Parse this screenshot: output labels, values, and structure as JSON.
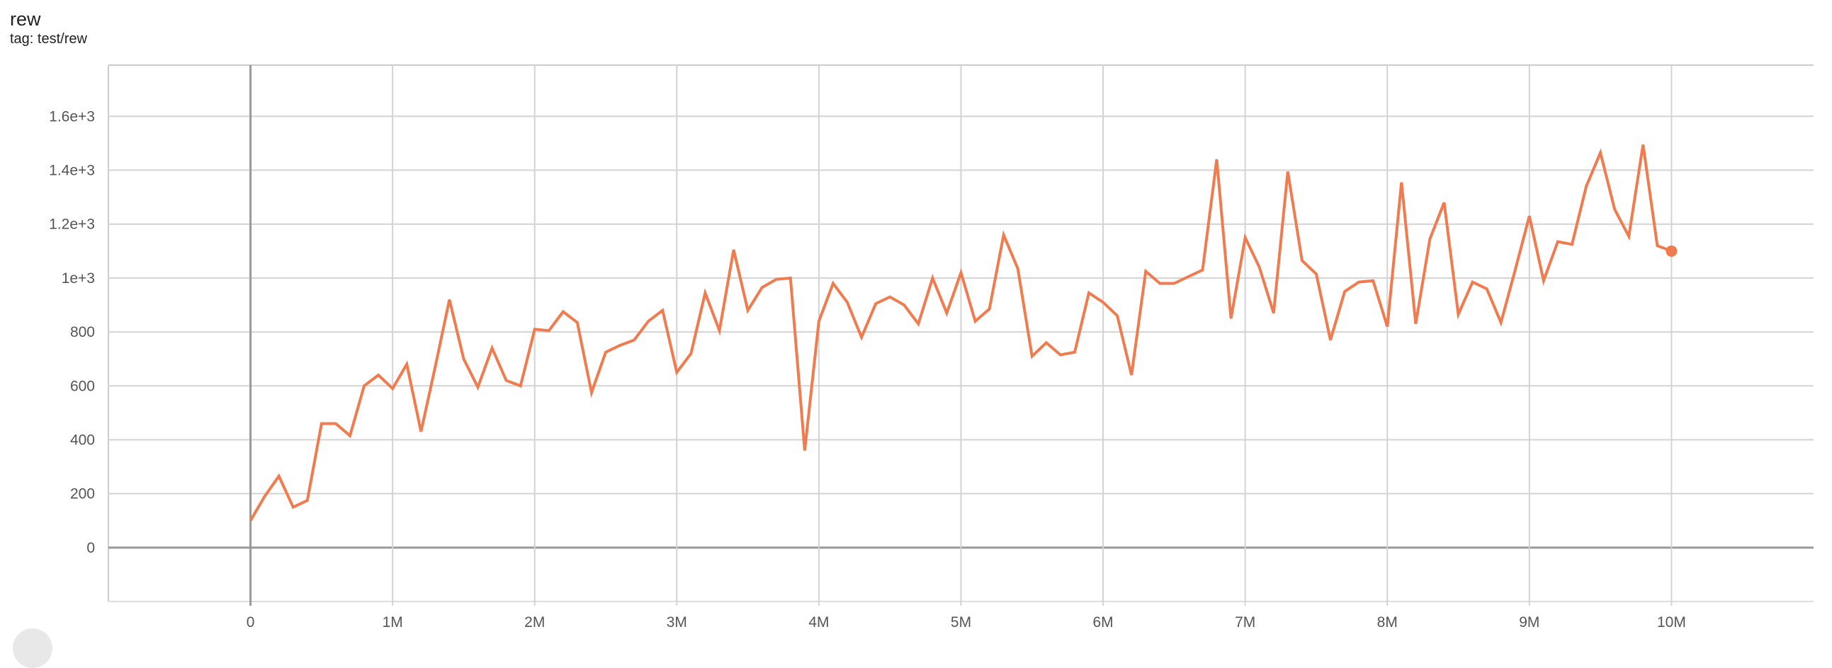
{
  "header": {
    "title": "rew",
    "subtitle": "tag: test/rew"
  },
  "chart_data": {
    "type": "line",
    "title": "rew",
    "subtitle": "tag: test/rew",
    "xlabel": "",
    "ylabel": "",
    "xlim": [
      -1000000,
      11000000
    ],
    "ylim": [
      -200,
      1790
    ],
    "grid": true,
    "x_ticks": [
      {
        "v": 0,
        "label": "0"
      },
      {
        "v": 1000000,
        "label": "1M"
      },
      {
        "v": 2000000,
        "label": "2M"
      },
      {
        "v": 3000000,
        "label": "3M"
      },
      {
        "v": 4000000,
        "label": "4M"
      },
      {
        "v": 5000000,
        "label": "5M"
      },
      {
        "v": 6000000,
        "label": "6M"
      },
      {
        "v": 7000000,
        "label": "7M"
      },
      {
        "v": 8000000,
        "label": "8M"
      },
      {
        "v": 9000000,
        "label": "9M"
      },
      {
        "v": 10000000,
        "label": "10M"
      }
    ],
    "y_ticks": [
      {
        "v": 0,
        "label": "0"
      },
      {
        "v": 200,
        "label": "200"
      },
      {
        "v": 400,
        "label": "400"
      },
      {
        "v": 600,
        "label": "600"
      },
      {
        "v": 800,
        "label": "800"
      },
      {
        "v": 1000,
        "label": "1e+3"
      },
      {
        "v": 1200,
        "label": "1.2e+3"
      },
      {
        "v": 1400,
        "label": "1.4e+3"
      },
      {
        "v": 1600,
        "label": "1.6e+3"
      }
    ],
    "series_color": "#f07b4e",
    "series": [
      {
        "x_step": 100000,
        "values": [
          100,
          190,
          265,
          150,
          175,
          460,
          460,
          415,
          600,
          640,
          590,
          680,
          430,
          670,
          920,
          700,
          595,
          740,
          620,
          600,
          810,
          805,
          875,
          835,
          575,
          725,
          750,
          770,
          840,
          880,
          650,
          720,
          945,
          805,
          1105,
          880,
          965,
          995,
          1000,
          360,
          840,
          980,
          910,
          780,
          905,
          930,
          900,
          830,
          1000,
          870,
          1020,
          840,
          885,
          1160,
          1035,
          710,
          760,
          715,
          725,
          945,
          910,
          860,
          640,
          1025,
          980,
          980,
          1005,
          1030,
          1440,
          850,
          1150,
          1040,
          870,
          1395,
          1065,
          1015,
          770,
          950,
          985,
          990,
          820,
          1355,
          830,
          1145,
          1280,
          865,
          985,
          960,
          835,
          1030,
          1230,
          990,
          1135,
          1125,
          1340,
          1465,
          1255,
          1155,
          1495,
          1120,
          1100
        ]
      }
    ]
  }
}
